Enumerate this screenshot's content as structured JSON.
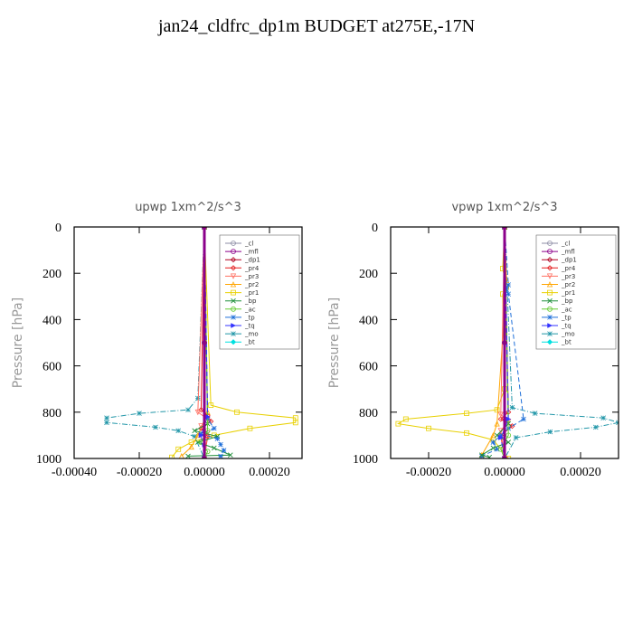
{
  "title": "jan24_cldfrc_dp1m  BUDGET at275E,-17N",
  "colors": {
    "_cl": "#8e8ea6",
    "_mfl": "#8b008b",
    "_dp1": "#b00020",
    "_pr4": "#e41a1c",
    "_pr3": "#ff6f61",
    "_pr2": "#ffa500",
    "_pr1": "#e8d000",
    "_bp": "#1f8f3a",
    "_ac": "#66cc33",
    "_tp": "#1e6fd9",
    "_tq": "#3333ff",
    "_mo": "#2196a8",
    "_bt": "#00e0e0"
  },
  "chart_data": [
    {
      "type": "line",
      "title": "upwp   1xm^2/s^3",
      "ylabel": "Pressure [hPa]",
      "xlim": [
        -0.0004,
        0.0003
      ],
      "ylim": [
        1000,
        0
      ],
      "xticks": [
        "-0.00040",
        "-0.00020",
        "0.00000",
        "0.00020"
      ],
      "xtick_values": [
        -0.0004,
        -0.0002,
        0,
        0.0002
      ],
      "yticks": [
        "0",
        "200",
        "400",
        "600",
        "800",
        "1000"
      ],
      "ytick_values": [
        0,
        200,
        400,
        600,
        800,
        1000
      ],
      "legend": [
        "_cl",
        "_mfl",
        "_dp1",
        "_pr4",
        "_pr3",
        "_pr2",
        "_pr1",
        "_bp",
        "_ac",
        "_tp",
        "_tq",
        "_mo",
        "_bt"
      ],
      "legend_position": "top-right",
      "series": [
        {
          "name": "_mo",
          "x": [
            0,
            -2e-05,
            -5e-05,
            -0.0002,
            -0.0003,
            -0.0003,
            -0.00015,
            -8e-05,
            -3e-05,
            0
          ],
          "y": [
            0,
            740,
            790,
            805,
            825,
            845,
            865,
            880,
            905,
            1000
          ]
        },
        {
          "name": "_pr1",
          "x": [
            0,
            2e-05,
            0.0001,
            0.00028,
            0.00028,
            0.00014,
            3e-05,
            -4e-05,
            -8e-05,
            -0.0001
          ],
          "y": [
            0,
            770,
            800,
            825,
            845,
            870,
            900,
            930,
            960,
            995
          ]
        },
        {
          "name": "_pr2",
          "x": [
            0,
            1e-05,
            -2e-05,
            -4e-05,
            -7e-05
          ],
          "y": [
            0,
            800,
            900,
            950,
            990
          ]
        },
        {
          "name": "_pr4",
          "x": [
            0,
            -1e-05,
            1e-05,
            2e-05,
            -1e-05,
            1e-05,
            0
          ],
          "y": [
            0,
            790,
            815,
            840,
            870,
            905,
            1000
          ]
        },
        {
          "name": "_pr3",
          "x": [
            0,
            -2e-05,
            1e-05,
            -1e-05,
            1e-05,
            0
          ],
          "y": [
            0,
            800,
            830,
            860,
            890,
            1000
          ]
        },
        {
          "name": "_bp",
          "x": [
            0,
            1e-05,
            -3e-05,
            4e-05,
            -2e-05,
            3e-05,
            8e-05,
            -5e-05
          ],
          "y": [
            0,
            850,
            880,
            905,
            930,
            955,
            985,
            990
          ]
        },
        {
          "name": "_tp",
          "x": [
            0,
            1e-05,
            3e-05,
            -1e-05,
            4e-05,
            5e-05,
            6e-05,
            5e-05
          ],
          "y": [
            0,
            830,
            870,
            895,
            915,
            940,
            965,
            990
          ]
        },
        {
          "name": "_ac",
          "x": [
            0,
            1e-05,
            -1e-05,
            1e-05,
            0
          ],
          "y": [
            0,
            880,
            930,
            970,
            1000
          ]
        },
        {
          "name": "_tq",
          "x": [
            0,
            1e-05,
            -1e-05,
            0
          ],
          "y": [
            0,
            820,
            900,
            1000
          ]
        },
        {
          "name": "_bt",
          "x": [
            0,
            0,
            0
          ],
          "y": [
            0,
            500,
            1000
          ]
        },
        {
          "name": "_cl",
          "x": [
            0,
            0,
            0
          ],
          "y": [
            0,
            500,
            1000
          ]
        },
        {
          "name": "_dp1",
          "x": [
            0,
            0,
            0
          ],
          "y": [
            0,
            500,
            1000
          ]
        },
        {
          "name": "_mfl",
          "x": [
            0,
            0,
            0
          ],
          "y": [
            0,
            500,
            1000
          ]
        }
      ]
    },
    {
      "type": "line",
      "title": "vpwp   1xm^2/s^3",
      "ylabel": "Pressure [hPa]",
      "xlim": [
        -0.0003,
        0.0003
      ],
      "ylim": [
        1000,
        0
      ],
      "xticks": [
        "-0.00020",
        "0.00000",
        "0.00020"
      ],
      "xtick_values": [
        -0.0002,
        0,
        0.0002
      ],
      "yticks": [
        "0",
        "200",
        "400",
        "600",
        "800",
        "1000"
      ],
      "ytick_values": [
        0,
        200,
        400,
        600,
        800,
        1000
      ],
      "legend": [
        "_cl",
        "_mfl",
        "_dp1",
        "_pr4",
        "_pr3",
        "_pr2",
        "_pr1",
        "_bp",
        "_ac",
        "_tp",
        "_tq",
        "_mo",
        "_bt"
      ],
      "legend_position": "top-right",
      "series": [
        {
          "name": "_mo",
          "x": [
            0,
            2e-05,
            8e-05,
            0.00026,
            0.0003,
            0.00024,
            0.00012,
            3e-05,
            0
          ],
          "y": [
            0,
            780,
            805,
            825,
            845,
            865,
            885,
            910,
            1000
          ]
        },
        {
          "name": "_pr1",
          "x": [
            0,
            -5e-06,
            5e-06,
            -5e-06,
            0,
            -2e-05,
            -0.0001,
            -0.00026,
            -0.00028,
            -0.0002,
            -0.0001,
            -3e-05,
            1e-05
          ],
          "y": [
            0,
            180,
            260,
            290,
            700,
            790,
            805,
            830,
            850,
            870,
            890,
            920,
            1000
          ]
        },
        {
          "name": "_pr2",
          "x": [
            0,
            5e-06,
            -2e-05,
            -3e-05,
            -6e-05
          ],
          "y": [
            0,
            230,
            850,
            900,
            985
          ]
        },
        {
          "name": "_pr4",
          "x": [
            0,
            1e-05,
            -1e-05,
            2e-05,
            -1e-05,
            0
          ],
          "y": [
            0,
            800,
            830,
            860,
            900,
            1000
          ]
        },
        {
          "name": "_pr3",
          "x": [
            0,
            -1e-05,
            1e-05,
            -1e-05,
            0
          ],
          "y": [
            0,
            810,
            840,
            880,
            1000
          ]
        },
        {
          "name": "_tp",
          "x": [
            0,
            1e-05,
            5e-06,
            1e-05,
            5e-05,
            1e-05,
            -1e-05,
            -3e-05,
            -2e-05,
            -6e-05
          ],
          "y": [
            0,
            250,
            270,
            290,
            830,
            870,
            900,
            930,
            960,
            990
          ]
        },
        {
          "name": "_bp",
          "x": [
            0,
            1e-05,
            -2e-05,
            1e-05,
            -3e-05,
            -6e-05,
            -4e-05
          ],
          "y": [
            0,
            850,
            900,
            930,
            955,
            985,
            995
          ]
        },
        {
          "name": "_ac",
          "x": [
            0,
            1e-05,
            -1e-05,
            0
          ],
          "y": [
            0,
            900,
            960,
            1000
          ]
        },
        {
          "name": "_tq",
          "x": [
            0,
            1e-05,
            -1e-05,
            0
          ],
          "y": [
            0,
            830,
            910,
            1000
          ]
        },
        {
          "name": "_bt",
          "x": [
            0,
            0,
            0
          ],
          "y": [
            0,
            500,
            1000
          ]
        },
        {
          "name": "_cl",
          "x": [
            0,
            0,
            0
          ],
          "y": [
            0,
            500,
            1000
          ]
        },
        {
          "name": "_dp1",
          "x": [
            0,
            0,
            0
          ],
          "y": [
            0,
            500,
            1000
          ]
        },
        {
          "name": "_mfl",
          "x": [
            0,
            0,
            0
          ],
          "y": [
            0,
            500,
            1000
          ]
        }
      ]
    }
  ]
}
